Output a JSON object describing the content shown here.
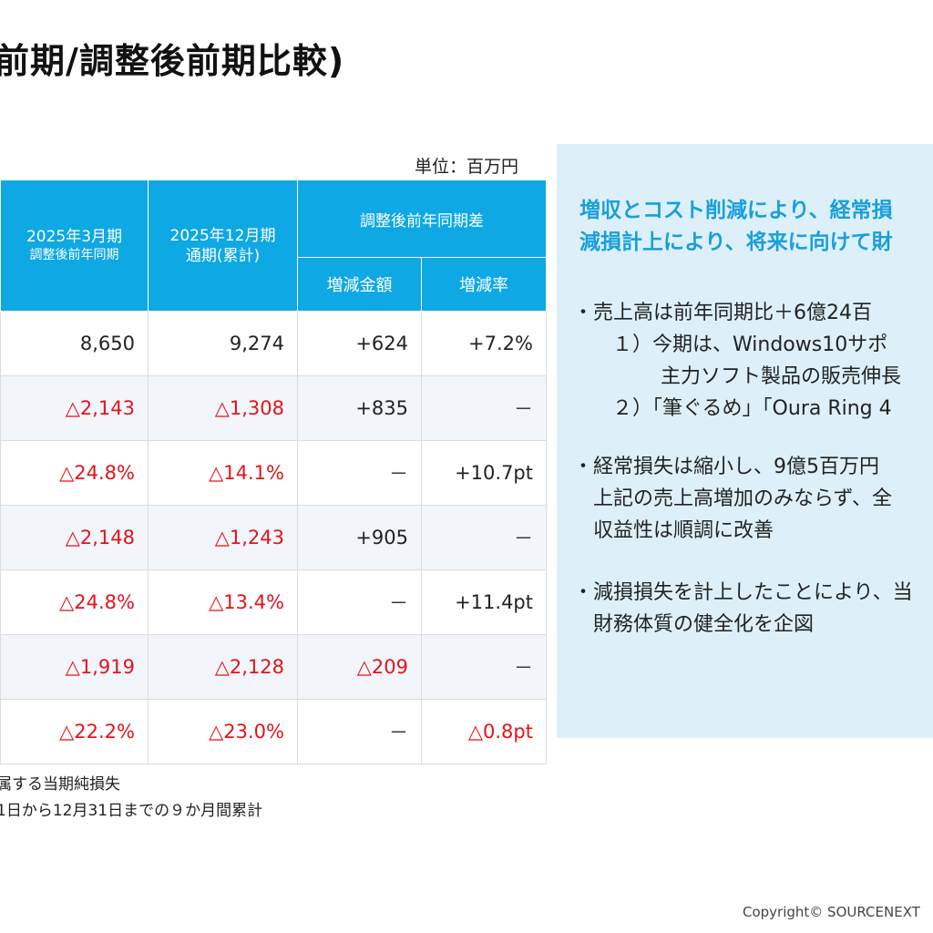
{
  "title": "前期/調整後前期比較)",
  "unit": "単位：百万円",
  "table": {
    "col_prev_main": "2025年3月期",
    "col_prev_sub": "調整後前年同期",
    "col_curr_main": "2025年12月期",
    "col_curr_sub": "通期(累計)",
    "col_diff_group": "調整後前年同期差",
    "col_diff_amount": "増減金額",
    "col_diff_rate": "増減率",
    "rows": [
      {
        "prev": "8,650",
        "curr": "9,274",
        "amount": "+624",
        "rate": "+7.2%"
      },
      {
        "prev": "△2,143",
        "curr": "△1,308",
        "amount": "+835",
        "rate": "－"
      },
      {
        "prev": "△24.8%",
        "curr": "△14.1%",
        "amount": "－",
        "rate": "+10.7pt"
      },
      {
        "prev": "△2,148",
        "curr": "△1,243",
        "amount": "+905",
        "rate": "－"
      },
      {
        "prev": "△24.8%",
        "curr": "△13.4%",
        "amount": "－",
        "rate": "+11.4pt"
      },
      {
        "prev": "△1,919",
        "curr": "△2,128",
        "amount": "△209",
        "rate": "－"
      },
      {
        "prev": "△22.2%",
        "curr": "△23.0%",
        "amount": "－",
        "rate": "△0.8pt"
      }
    ]
  },
  "notes": [
    "属する当期純損失",
    "1日から12月31日までの９か月間累計"
  ],
  "panel": {
    "headline_1": "増収とコスト削減により、経常損",
    "headline_2": "減損計上により、将来に向けて財",
    "b1_1": "・売上高は前年同期比＋6億24百",
    "b1_2": "１）今期は、Windows10サポ",
    "b1_3": "主力ソフト製品の販売伸長",
    "b1_4": "２）「筆ぐるめ」「Oura Ring 4",
    "b2_1": "・経常損失は縮小し、9億5百万円",
    "b2_2": "上記の売上高増加のみならず、全",
    "b2_3": "収益性は順調に改善",
    "b3_1": "・減損損失を計上したことにより、当",
    "b3_2": "財務体質の健全化を企図"
  },
  "copyright": "Copyright© SOURCENEXT"
}
